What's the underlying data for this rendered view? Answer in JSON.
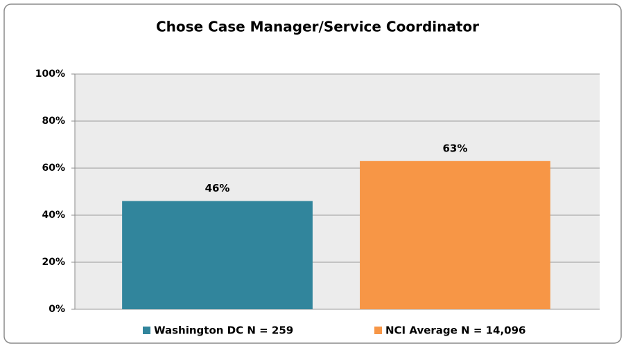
{
  "chart_data": {
    "type": "bar",
    "title": "Chose Case Manager/Service Coordinator",
    "categories": [
      null
    ],
    "series": [
      {
        "name": "Washington DC N = 259",
        "color": "#31859c",
        "values": [
          46
        ],
        "value_labels": [
          "46%"
        ]
      },
      {
        "name": "NCI Average N = 14,096",
        "color": "#f79646",
        "values": [
          63
        ],
        "value_labels": [
          "63%"
        ]
      }
    ],
    "ylim": [
      0,
      100
    ],
    "yticks": [
      {
        "value": 0,
        "label": "0%"
      },
      {
        "value": 20,
        "label": "20%"
      },
      {
        "value": 40,
        "label": "40%"
      },
      {
        "value": 60,
        "label": "60%"
      },
      {
        "value": 80,
        "label": "80%"
      },
      {
        "value": 100,
        "label": "100%"
      }
    ],
    "grid": true,
    "legend": "bottom"
  }
}
